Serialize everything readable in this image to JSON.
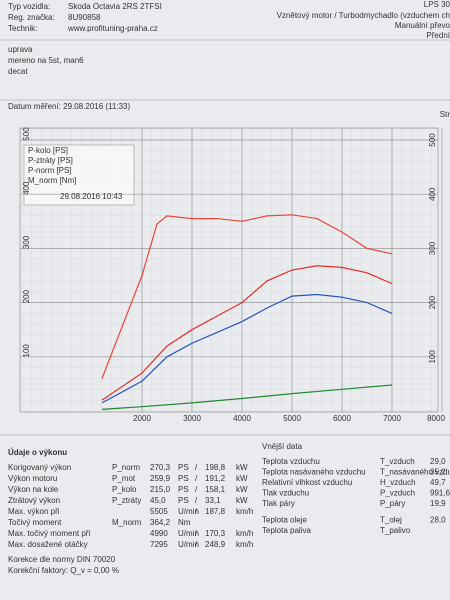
{
  "header": {
    "labels": [
      "Typ vozidla:",
      "Reg. značka:",
      "Technik:"
    ],
    "values": [
      "Skoda Octavia 2RS 2TFSI",
      "8U90858",
      "www.profituning-praha.cz"
    ],
    "right": [
      "Vznětový motor / Turbodmychadlo (vzduchem ch",
      "Manuální převo",
      "Přední"
    ],
    "corner": "LPS 30"
  },
  "notes": [
    "uprava",
    "mereno na 5st, man6",
    "decat"
  ],
  "date": "Datum měření: 29.08.2016 (11:33)",
  "page": "Str",
  "chart": {
    "xlim": [
      0,
      8000
    ],
    "ylim": [
      0,
      500
    ],
    "xticks": [
      2000,
      3000,
      4000,
      5000,
      6000,
      7000,
      8000
    ],
    "yticks": [
      100,
      200,
      300,
      400,
      500
    ],
    "y2ticks": [
      100,
      200,
      300,
      400,
      500
    ],
    "legend": [
      "P-kolo [PS]",
      "P-ztráty [PS]",
      "P-norm [PS]",
      "M_norm [Nm]"
    ],
    "run": "29.08.2016 10:43",
    "series": [
      {
        "name": "P-kolo [PS]",
        "color": "#2456b8",
        "rpm": [
          1200,
          2000,
          2500,
          3000,
          3500,
          4000,
          4500,
          5000,
          5500,
          6000,
          6500,
          7000
        ],
        "values": [
          15,
          55,
          100,
          125,
          145,
          165,
          190,
          212,
          215,
          210,
          200,
          180
        ]
      },
      {
        "name": "P-ztráty [PS]",
        "color": "#1f8a2e",
        "rpm": [
          1200,
          2000,
          3000,
          4000,
          5000,
          6000,
          7000
        ],
        "values": [
          3,
          8,
          15,
          23,
          32,
          40,
          48
        ]
      },
      {
        "name": "P-norm [PS]",
        "color": "#e0302a",
        "rpm": [
          1200,
          2000,
          2500,
          3000,
          3500,
          4000,
          4500,
          5000,
          5500,
          6000,
          6500,
          7000
        ],
        "values": [
          20,
          70,
          120,
          150,
          175,
          200,
          240,
          260,
          268,
          265,
          255,
          235
        ]
      },
      {
        "name": "M_norm [Nm]",
        "color": "#e8463a",
        "rpm": [
          1200,
          2000,
          2300,
          2500,
          3000,
          3500,
          4000,
          4500,
          5000,
          5500,
          6000,
          6500,
          7000
        ],
        "values": [
          60,
          250,
          345,
          360,
          355,
          355,
          350,
          360,
          362,
          355,
          330,
          300,
          290
        ]
      }
    ]
  },
  "perf": {
    "title": "Údaje o výkonu",
    "rows": [
      [
        "Korigovaný výkon",
        "P_norm",
        "270,3",
        "PS",
        "/",
        "198,8",
        "kW"
      ],
      [
        "Výkon motoru",
        "P_mot",
        "259,9",
        "PS",
        "/",
        "191,2",
        "kW"
      ],
      [
        "Výkon na kole",
        "P_kolo",
        "215,0",
        "PS",
        "/",
        "158,1",
        "kW"
      ],
      [
        "Ztrátový výkon",
        "P_ztráty",
        "45,0",
        "PS",
        "/",
        "33,1",
        "kW"
      ],
      [
        "Max. výkon při",
        "",
        "5505",
        "U/min",
        "/",
        "187,8",
        "km/h"
      ],
      [
        "Točivý moment",
        "M_norm",
        "364,2",
        "Nm",
        "",
        "",
        ""
      ],
      [
        "Max. točivý moment při",
        "",
        "4990",
        "U/min",
        "/",
        "170,3",
        "km/h"
      ],
      [
        "Max. dosažené otáčky",
        "",
        "7295",
        "U/min",
        "/",
        "248,9",
        "km/h"
      ]
    ],
    "norm": "Korekce dle normy DIN 70020",
    "factor": "Korekční faktory: Q_v = 0,00 %"
  },
  "ext": {
    "title": "Vnější data",
    "rows": [
      [
        "Teplota vzduchu",
        "T_vzduch",
        "29,0"
      ],
      [
        "Teplota nasávaného vzduchu",
        "T_nasávaného vzduchu",
        "35,2"
      ],
      [
        "Relativní vlhkost vzduchu",
        "H_vzduch",
        "49,7"
      ],
      [
        "Tlak vzduchu",
        "P_vzduch",
        "991,6"
      ],
      [
        "Tlak páry",
        "P_páry",
        "19,9"
      ],
      [
        "Teplota oleje",
        "T_olej",
        "28,0"
      ],
      [
        "Teplota paliva",
        "T_palivo"
      ]
    ]
  }
}
